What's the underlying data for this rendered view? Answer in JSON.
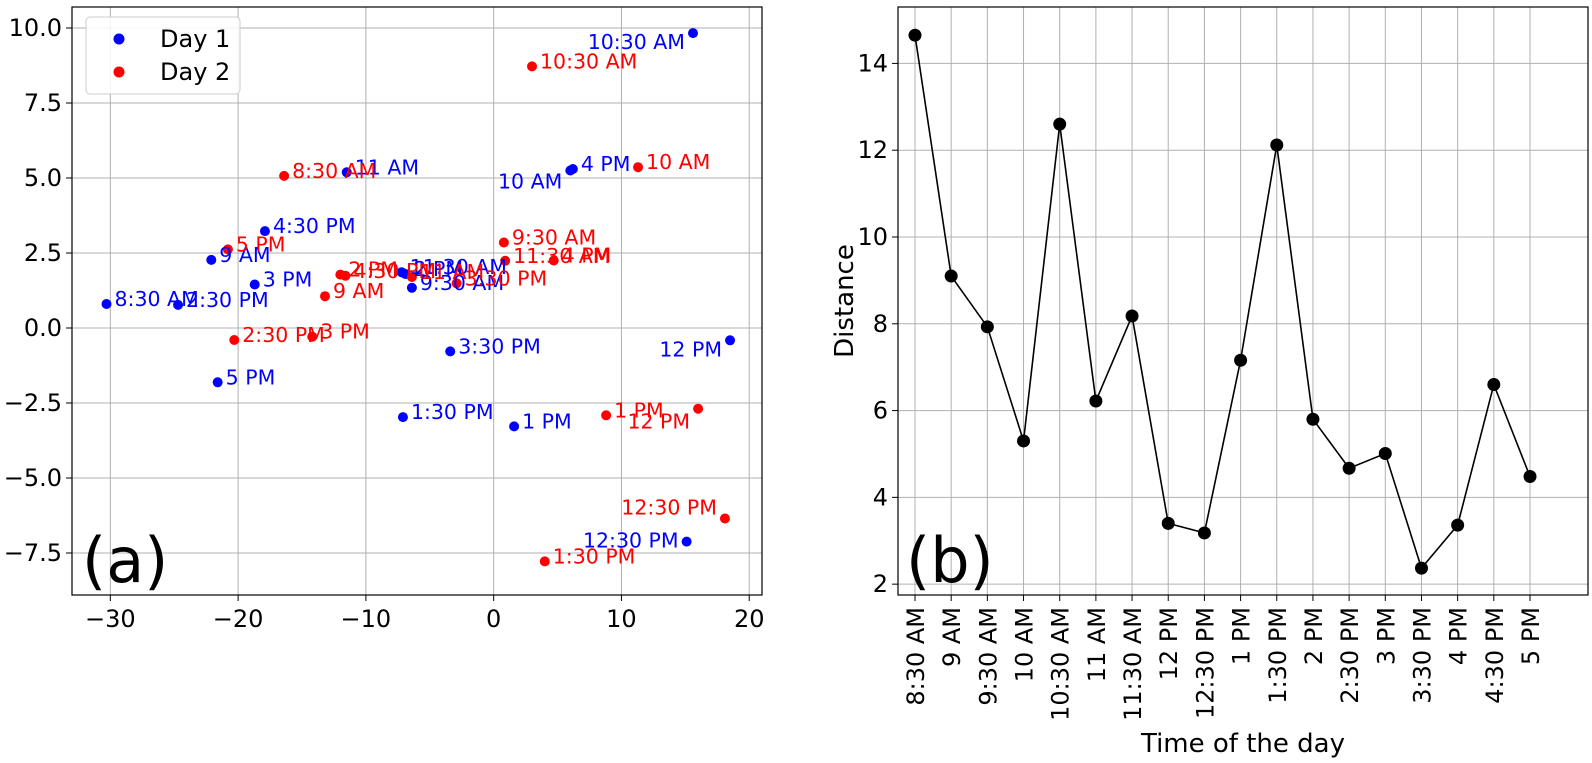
{
  "colors": {
    "day1": "#0000ff",
    "day2": "#ff0000",
    "distance": "#000000",
    "grid": "#b0b0b0"
  },
  "chart_data": [
    {
      "type": "scatter",
      "panel_label": "(a)",
      "xlim": [
        -33,
        21
      ],
      "ylim": [
        -8.9,
        10.7
      ],
      "xticks": [
        -30,
        -20,
        -10,
        0,
        10,
        20
      ],
      "yticks": [
        -7.5,
        -5.0,
        -2.5,
        0.0,
        2.5,
        5.0,
        7.5,
        10.0
      ],
      "xtick_labels": [
        "−30",
        "−20",
        "−10",
        "0",
        "10",
        "20"
      ],
      "ytick_labels": [
        "−7.5",
        "−5.0",
        "−2.5",
        "0.0",
        "2.5",
        "5.0",
        "7.5",
        "10.0"
      ],
      "grid": true,
      "legend": {
        "position": "top-left",
        "entries": [
          {
            "name": "Day 1",
            "color": "#0000ff"
          },
          {
            "name": "Day 2",
            "color": "#ff0000"
          }
        ]
      },
      "series": [
        {
          "name": "Day 1",
          "color": "#0000ff",
          "points": [
            {
              "label": "8:30 AM",
              "x": -30.3,
              "y": 0.8
            },
            {
              "label": "9 AM",
              "x": -22.1,
              "y": 2.27
            },
            {
              "label": "9:30 AM",
              "x": -6.4,
              "y": 1.34
            },
            {
              "label": "10 AM",
              "x": 6.0,
              "y": 5.25
            },
            {
              "label": "10:30 AM",
              "x": 15.6,
              "y": 9.83
            },
            {
              "label": "11 AM",
              "x": -11.5,
              "y": 5.19
            },
            {
              "label": "11:30 AM",
              "x": -7.2,
              "y": 1.86
            },
            {
              "label": "12 PM",
              "x": 18.5,
              "y": -0.41
            },
            {
              "label": "12:30 PM",
              "x": 15.1,
              "y": -7.12
            },
            {
              "label": "1 PM",
              "x": 1.6,
              "y": -3.28
            },
            {
              "label": "1:30 PM",
              "x": -7.1,
              "y": -2.97
            },
            {
              "label": "2 PM",
              "x": -6.9,
              "y": 1.8
            },
            {
              "label": "2:30 PM",
              "x": -24.7,
              "y": 0.77
            },
            {
              "label": "3 PM",
              "x": -18.7,
              "y": 1.45
            },
            {
              "label": "3:30 PM",
              "x": -3.4,
              "y": -0.78
            },
            {
              "label": "4 PM",
              "x": 6.2,
              "y": 5.3
            },
            {
              "label": "4:30 PM",
              "x": -17.9,
              "y": 3.23
            },
            {
              "label": "5 PM",
              "x": -21.6,
              "y": -1.81
            }
          ]
        },
        {
          "name": "Day 2",
          "color": "#ff0000",
          "points": [
            {
              "label": "8:30 AM",
              "x": -16.4,
              "y": 5.07
            },
            {
              "label": "9 AM",
              "x": -13.2,
              "y": 1.06
            },
            {
              "label": "9:30 AM",
              "x": 0.8,
              "y": 2.85
            },
            {
              "label": "10 AM",
              "x": 11.3,
              "y": 5.36
            },
            {
              "label": "10:30 AM",
              "x": 3.0,
              "y": 8.72
            },
            {
              "label": "11 AM",
              "x": -6.4,
              "y": 1.7
            },
            {
              "label": "11:30 AM",
              "x": 0.9,
              "y": 2.24
            },
            {
              "label": "12 PM",
              "x": 16.0,
              "y": -2.69
            },
            {
              "label": "12:30 PM",
              "x": 18.1,
              "y": -6.35
            },
            {
              "label": "1 PM",
              "x": 8.8,
              "y": -2.91
            },
            {
              "label": "1:30 PM",
              "x": 4.0,
              "y": -7.78
            },
            {
              "label": "2 PM",
              "x": -12.0,
              "y": 1.78
            },
            {
              "label": "2:30 PM",
              "x": -20.3,
              "y": -0.4
            },
            {
              "label": "3 PM",
              "x": -14.2,
              "y": -0.29
            },
            {
              "label": "3:30 PM",
              "x": -2.9,
              "y": 1.49
            },
            {
              "label": "4 PM",
              "x": 4.7,
              "y": 2.25
            },
            {
              "label": "4:30 PM",
              "x": -11.6,
              "y": 1.74
            },
            {
              "label": "5 PM",
              "x": -20.8,
              "y": 2.62
            }
          ]
        }
      ]
    },
    {
      "type": "line",
      "panel_label": "(b)",
      "xlabel": "Time of the day",
      "ylabel": "Distance",
      "ylim": [
        1.75,
        15.3
      ],
      "yticks": [
        2,
        4,
        6,
        8,
        10,
        12,
        14
      ],
      "grid": true,
      "categories": [
        "8:30 AM",
        "9 AM",
        "9:30 AM",
        "10 AM",
        "10:30 AM",
        "11 AM",
        "11:30 AM",
        "12 PM",
        "12:30 PM",
        "1 PM",
        "1:30 PM",
        "2 PM",
        "2:30 PM",
        "3 PM",
        "3:30 PM",
        "4 PM",
        "4:30 PM",
        "5 PM"
      ],
      "series": [
        {
          "color": "#000000",
          "values": [
            14.65,
            9.1,
            7.93,
            5.3,
            12.6,
            6.22,
            8.18,
            3.4,
            3.18,
            7.16,
            12.12,
            5.8,
            4.67,
            5.01,
            2.37,
            3.36,
            6.6,
            4.48
          ]
        }
      ]
    }
  ]
}
